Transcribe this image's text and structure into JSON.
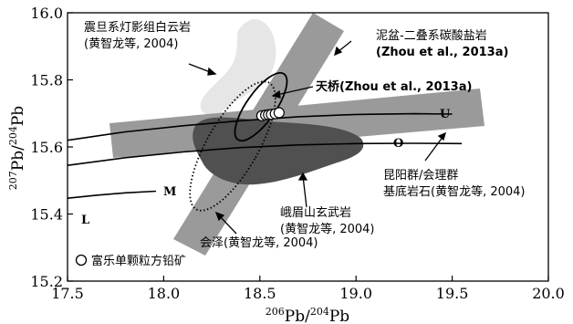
{
  "chart_data": {
    "type": "scatter",
    "xlabel": "206Pb/204Pb",
    "ylabel": "207Pb/204Pb",
    "xlim": [
      17.5,
      20.0
    ],
    "ylim": [
      15.2,
      16.0
    ],
    "xticks": [
      "17.5",
      "18.0",
      "18.5",
      "19.0",
      "19.5",
      "20.0"
    ],
    "yticks": [
      "15.2",
      "15.4",
      "15.6",
      "15.8",
      "16.0"
    ],
    "curves": [
      {
        "name": "U",
        "points": [
          [
            17.5,
            15.62
          ],
          [
            17.8,
            15.645
          ],
          [
            18.1,
            15.663
          ],
          [
            18.4,
            15.678
          ],
          [
            18.7,
            15.69
          ],
          [
            19.0,
            15.697
          ],
          [
            19.3,
            15.699
          ],
          [
            19.5,
            15.698
          ]
        ]
      },
      {
        "name": "O",
        "points": [
          [
            17.5,
            15.545
          ],
          [
            17.8,
            15.568
          ],
          [
            18.1,
            15.585
          ],
          [
            18.4,
            15.598
          ],
          [
            18.7,
            15.606
          ],
          [
            19.0,
            15.61
          ],
          [
            19.3,
            15.611
          ],
          [
            19.55,
            15.61
          ]
        ]
      },
      {
        "name": "M",
        "points": [
          [
            17.5,
            15.447
          ],
          [
            17.65,
            15.456
          ],
          [
            17.8,
            15.463
          ],
          [
            17.96,
            15.468
          ]
        ]
      },
      {
        "name": "L",
        "points": []
      }
    ],
    "regions": [
      {
        "label_lines": [
          "震旦系灯影组白云岩",
          "(黄智龙等, 2004)"
        ],
        "style": "light-blob"
      },
      {
        "label_lines": [
          "泥盆-二叠系碳酸盐岩",
          "(Zhou et al., 2013a)"
        ],
        "style": "gray-band-steep"
      },
      {
        "label_lines": [
          "昆阳群/会理群",
          "基底岩石(黄智龙等, 2004)"
        ],
        "style": "gray-band-flat"
      },
      {
        "label_lines": [
          "峨眉山玄武岩",
          "(黄智龙等, 2004)"
        ],
        "style": "dark-blob"
      },
      {
        "label_lines": [
          "会泽(黄智龙等, 2004)"
        ],
        "style": "dotted-ellipse"
      },
      {
        "label_lines": [
          "天桥(Zhou et al., 2013a)"
        ],
        "style": "solid-ellipse"
      }
    ],
    "series": [
      {
        "name": "富乐单颗粒方铅矿",
        "marker": "open-circle",
        "x": [
          18.51,
          18.53,
          18.545,
          18.56,
          18.58,
          18.6
        ],
        "y": [
          15.693,
          15.695,
          15.696,
          15.697,
          15.699,
          15.702
        ]
      }
    ],
    "legend": "bottom-left"
  }
}
